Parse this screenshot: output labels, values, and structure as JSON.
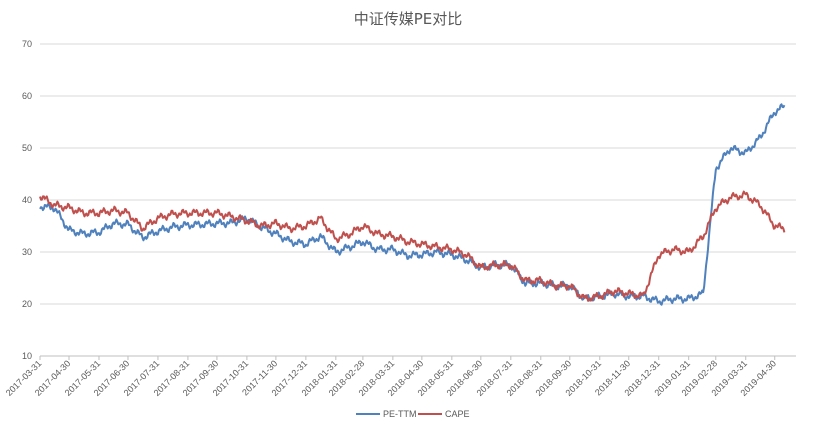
{
  "chart_data": {
    "type": "line",
    "title": "中证传媒PE对比",
    "xlabel": "",
    "ylabel": "",
    "ylim": [
      10,
      70
    ],
    "y_ticks": [
      10,
      20,
      30,
      40,
      50,
      60,
      70
    ],
    "grid": true,
    "legend_position": "bottom-center",
    "x_ticks": [
      "2017-03-31",
      "2017-04-30",
      "2017-05-31",
      "2017-06-30",
      "2017-07-31",
      "2017-08-31",
      "2017-09-30",
      "2017-10-31",
      "2017-11-30",
      "2017-12-31",
      "2018-01-31",
      "2018-02-28",
      "2018-03-31",
      "2018-04-30",
      "2018-05-31",
      "2018-06-30",
      "2018-07-31",
      "2018-08-31",
      "2018-09-30",
      "2018-10-31",
      "2018-11-30",
      "2018-12-31",
      "2019-01-31",
      "2019-02-28",
      "2019-03-31",
      "2019-04-30"
    ],
    "x": [
      "2017-03-31",
      "2017-04-15",
      "2017-04-30",
      "2017-05-15",
      "2017-05-31",
      "2017-06-15",
      "2017-06-30",
      "2017-07-15",
      "2017-07-31",
      "2017-08-15",
      "2017-08-31",
      "2017-09-15",
      "2017-09-30",
      "2017-10-15",
      "2017-10-31",
      "2017-11-15",
      "2017-11-30",
      "2017-12-15",
      "2017-12-31",
      "2018-01-15",
      "2018-01-31",
      "2018-02-15",
      "2018-02-28",
      "2018-03-15",
      "2018-03-31",
      "2018-04-15",
      "2018-04-30",
      "2018-05-15",
      "2018-05-31",
      "2018-06-15",
      "2018-06-30",
      "2018-07-15",
      "2018-07-31",
      "2018-08-15",
      "2018-08-31",
      "2018-09-15",
      "2018-09-30",
      "2018-10-15",
      "2018-10-31",
      "2018-11-15",
      "2018-11-30",
      "2018-12-15",
      "2018-12-31",
      "2019-01-15",
      "2019-01-31",
      "2019-02-15",
      "2019-02-28",
      "2019-03-15",
      "2019-03-31",
      "2019-04-15",
      "2019-04-30",
      "2019-05-10"
    ],
    "series": [
      {
        "name": "PE-TTM",
        "color": "#4f81bd",
        "values": [
          38.8,
          38.5,
          34.2,
          33.5,
          33.8,
          35.5,
          35.3,
          32.8,
          34.0,
          34.8,
          35.2,
          35.3,
          35.5,
          35.6,
          36.5,
          34.8,
          33.5,
          32.0,
          31.5,
          33.0,
          30.0,
          31.0,
          32.0,
          30.5,
          30.5,
          29.3,
          29.5,
          30.0,
          29.5,
          28.5,
          27.0,
          27.5,
          27.5,
          24.0,
          24.0,
          23.5,
          23.5,
          21.0,
          21.5,
          22.0,
          21.5,
          21.5,
          20.5,
          21.0,
          21.0,
          22.0,
          46.0,
          50.0,
          49.0,
          52.0,
          57.0,
          58.0
        ]
      },
      {
        "name": "CAPE",
        "color": "#c0504d",
        "values": [
          40.8,
          39.0,
          38.5,
          37.5,
          37.5,
          38.0,
          37.5,
          34.5,
          36.5,
          37.3,
          37.5,
          37.5,
          37.5,
          36.8,
          36.0,
          35.0,
          35.5,
          34.5,
          35.0,
          36.5,
          32.5,
          33.5,
          35.0,
          33.5,
          33.0,
          32.0,
          31.5,
          31.0,
          30.5,
          29.5,
          27.0,
          27.5,
          27.5,
          24.5,
          24.5,
          23.5,
          23.5,
          21.0,
          21.5,
          22.5,
          22.0,
          21.5,
          29.5,
          30.5,
          30.0,
          33.0,
          38.5,
          40.5,
          41.0,
          39.0,
          35.0,
          34.5
        ]
      }
    ]
  }
}
